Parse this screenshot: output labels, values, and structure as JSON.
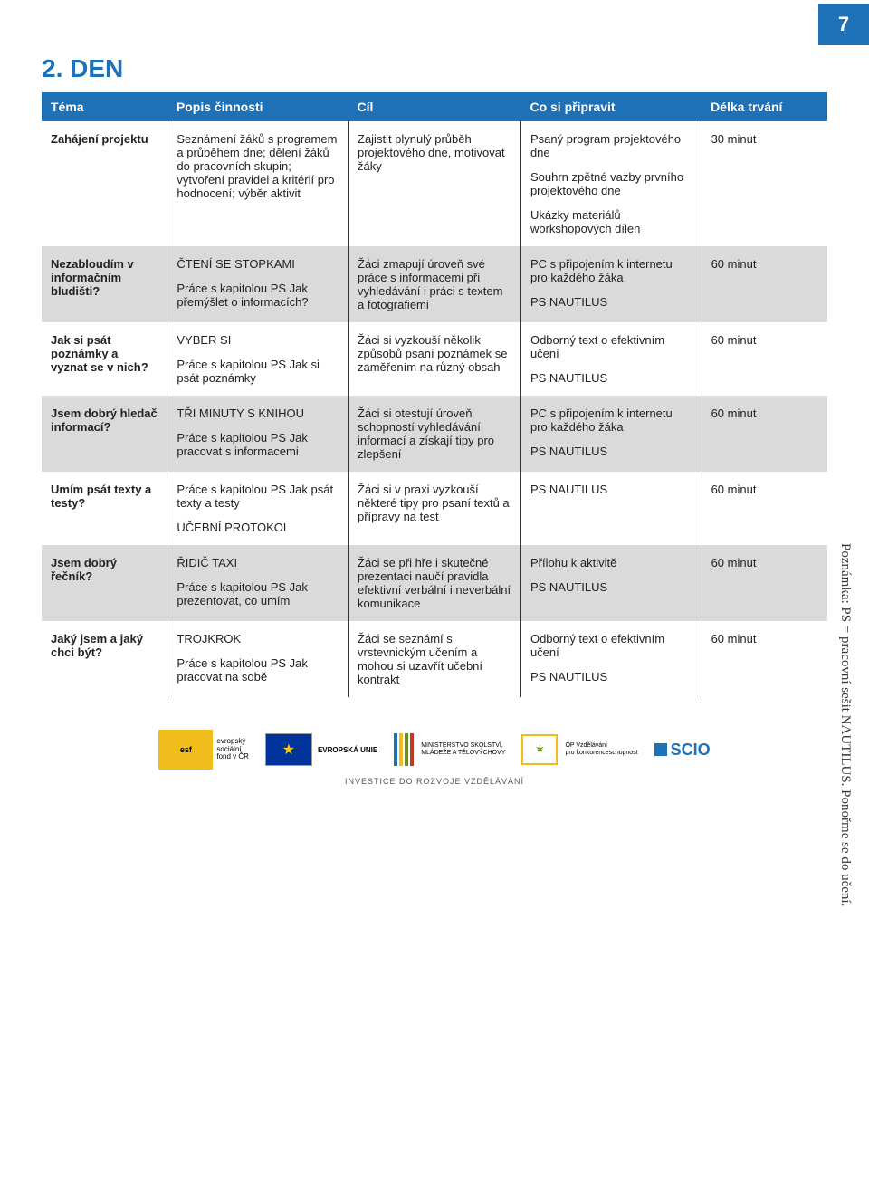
{
  "page_number": "7",
  "heading": "2. DEN",
  "sidenote": "Poznámka: PS = pracovní sešit NAUTILUS. Ponořme se do učení.",
  "table": {
    "col_widths": [
      "16%",
      "23%",
      "22%",
      "23%",
      "16%"
    ],
    "headers": [
      "Téma",
      "Popis činnosti",
      "Cíl",
      "Co si připravit",
      "Délka trvání"
    ],
    "rows": [
      {
        "theme": "Zahájení projektu",
        "popis": [
          "Seznámení žáků s programem a průběhem dne; dělení žáků do pracovních skupin; vytvoření pravidel a kritérií pro hodnocení; výběr aktivit"
        ],
        "cil": [
          "Zajistit plynulý průběh projektového dne, motivovat žáky"
        ],
        "pripravit": [
          "Psaný program projektového dne",
          "Souhrn zpětné vazby prvního projektového dne",
          "Ukázky materiálů workshopových dílen"
        ],
        "delka": "30 minut"
      },
      {
        "theme": "Nezabloudím v informačním bludišti?",
        "popis": [
          "ČTENÍ SE STOPKAMI",
          "Práce s kapitolou PS Jak přemýšlet o informacích?"
        ],
        "cil": [
          "Žáci zmapují úroveň své práce s informacemi při vyhledávání i práci s textem a fotografiemi"
        ],
        "pripravit": [
          "PC s připojením k internetu pro každého žáka",
          "PS NAUTILUS"
        ],
        "delka": "60 minut"
      },
      {
        "theme": "Jak si psát poznámky a vyznat se v nich?",
        "popis": [
          "VYBER SI",
          "Práce s kapitolou PS Jak si psát poznámky"
        ],
        "cil": [
          "Žáci si vyzkouší několik způsobů psaní poznámek se zaměřením na různý obsah"
        ],
        "pripravit": [
          "Odborný text o efektivním učení",
          "PS NAUTILUS"
        ],
        "delka": "60 minut"
      },
      {
        "theme": "Jsem dobrý hledač informací?",
        "popis": [
          "TŘI MINUTY S KNIHOU",
          "Práce s kapitolou PS Jak pracovat s informacemi"
        ],
        "cil": [
          "Žáci si otestují úroveň schopností vyhledávání informací a získají tipy pro zlepšení"
        ],
        "pripravit": [
          "PC s připojením k internetu pro každého žáka",
          "PS NAUTILUS"
        ],
        "delka": "60 minut"
      },
      {
        "theme": "Umím psát texty a testy?",
        "popis": [
          "Práce s kapitolou PS Jak psát texty a testy",
          "UČEBNÍ PROTOKOL"
        ],
        "cil": [
          "Žáci si v praxi vyzkouší některé tipy pro psaní textů a přípravy na test"
        ],
        "pripravit": [
          "PS NAUTILUS"
        ],
        "delka": "60 minut"
      },
      {
        "theme": "Jsem dobrý řečník?",
        "popis": [
          "ŘIDIČ TAXI",
          "Práce s kapitolou PS Jak prezentovat, co umím"
        ],
        "cil": [
          "Žáci se při hře i skutečné prezentaci naučí pravidla efektivní verbální i neverbální komunikace"
        ],
        "pripravit": [
          "Přílohu k aktivitě",
          "PS NAUTILUS"
        ],
        "delka": "60 minut"
      },
      {
        "theme": "Jaký jsem a jaký chci být?",
        "popis": [
          "TROJKROK",
          "Práce s kapitolou PS Jak pracovat na sobě"
        ],
        "cil": [
          "Žáci se seznámí s vrstevnickým učením a mohou si uzavřít učební kontrakt"
        ],
        "pripravit": [
          "Odborný text o efektivním učení",
          "PS NAUTILUS"
        ],
        "delka": "60 minut"
      }
    ]
  },
  "footer": {
    "esf_main": "esf",
    "esf_text": "evropský\nsociální\nfond v ČR",
    "eu_text": "EVROPSKÁ UNIE",
    "msmt_text": "MINISTERSTVO ŠKOLSTVÍ,\nMLÁDEŽE A TĚLOVÝCHOVY",
    "msmt_colors": [
      "#1e70b7",
      "#f0bd1c",
      "#6b8e23",
      "#c0392b"
    ],
    "op_text": "OP Vzdělávání\npro konkurenceschopnost",
    "op_label": "✶",
    "scio_text": "SCIO",
    "caption": "INVESTICE DO ROZVOJE VZDĚLÁVÁNÍ"
  },
  "colors": {
    "primary": "#1e70b7",
    "row_alt": "#dadada"
  }
}
